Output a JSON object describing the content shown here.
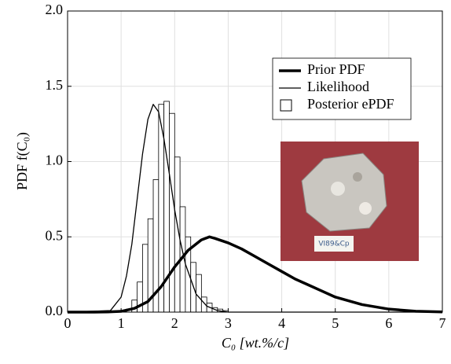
{
  "chart_data": {
    "type": "line",
    "xlabel": "C₀ [wt.%/c]",
    "ylabel": "PDF f(C₀)",
    "xlim": [
      0,
      7
    ],
    "xticks": [
      0,
      1,
      2,
      3,
      4,
      5,
      6,
      7
    ],
    "ylim": [
      0,
      2.0
    ],
    "yticks": [
      {
        "value": 0,
        "label": "0.0"
      },
      {
        "value": 0.5,
        "label": "0.5"
      },
      {
        "value": 1.0,
        "label": "1.0"
      },
      {
        "value": 1.5,
        "label": "1.5"
      },
      {
        "value": 2.0,
        "label": "2.0"
      }
    ],
    "grid": true,
    "legend": "upper right",
    "photo_label": "VI89&Cp",
    "series": [
      {
        "name": "Prior PDF",
        "type": "line",
        "color": "#000000",
        "x": [
          0,
          0.5,
          0.75,
          1.0,
          1.25,
          1.5,
          1.75,
          2.0,
          2.25,
          2.5,
          2.65,
          2.75,
          3.0,
          3.25,
          3.5,
          3.75,
          4.0,
          4.25,
          4.5,
          4.75,
          5.0,
          5.5,
          6.0,
          6.5,
          7.0
        ],
        "values": [
          0,
          0,
          0.001,
          0.005,
          0.025,
          0.07,
          0.17,
          0.3,
          0.41,
          0.48,
          0.5,
          0.49,
          0.46,
          0.42,
          0.37,
          0.32,
          0.27,
          0.22,
          0.18,
          0.14,
          0.1,
          0.05,
          0.02,
          0.006,
          0.001
        ]
      },
      {
        "name": "Likelihood",
        "type": "line",
        "color": "#000000",
        "x": [
          0,
          0.8,
          1.0,
          1.1,
          1.2,
          1.3,
          1.4,
          1.5,
          1.6,
          1.7,
          1.8,
          1.9,
          2.0,
          2.1,
          2.2,
          2.4,
          2.6,
          2.8,
          3.0,
          7.0
        ],
        "values": [
          0,
          0.01,
          0.1,
          0.24,
          0.45,
          0.75,
          1.05,
          1.28,
          1.38,
          1.33,
          1.15,
          0.92,
          0.68,
          0.48,
          0.32,
          0.12,
          0.04,
          0.01,
          0,
          0
        ]
      },
      {
        "name": "Posterior ePDF",
        "type": "histogram",
        "color": "#000000",
        "bins": [
          1.1,
          1.2,
          1.3,
          1.4,
          1.5,
          1.6,
          1.7,
          1.8,
          1.9,
          2.0,
          2.1,
          2.2,
          2.3,
          2.4,
          2.5,
          2.6,
          2.7,
          2.8,
          2.9,
          3.0
        ],
        "values": [
          0.02,
          0.08,
          0.2,
          0.45,
          0.62,
          0.88,
          1.38,
          1.4,
          1.32,
          1.03,
          0.7,
          0.5,
          0.33,
          0.25,
          0.1,
          0.06,
          0.03,
          0.02,
          0.01
        ]
      }
    ]
  }
}
